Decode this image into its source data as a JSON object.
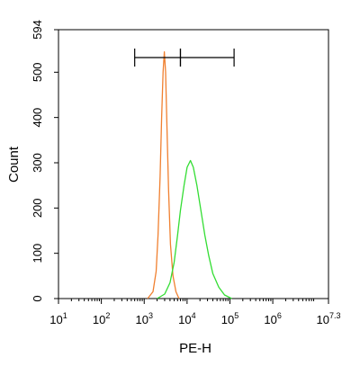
{
  "chart_data": {
    "type": "histogram",
    "xlabel": "PE-H",
    "ylabel": "Count",
    "xscale": "log",
    "xlim": [
      10,
      19952623
    ],
    "ylim": [
      0,
      594
    ],
    "x_ticks": [
      {
        "base": "10",
        "exp": "1",
        "value": 10
      },
      {
        "base": "10",
        "exp": "2",
        "value": 100
      },
      {
        "base": "10",
        "exp": "3",
        "value": 1000
      },
      {
        "base": "10",
        "exp": "4",
        "value": 10000
      },
      {
        "base": "10",
        "exp": "5",
        "value": 100000
      },
      {
        "base": "10",
        "exp": "6",
        "value": 1000000
      },
      {
        "base": "10",
        "exp": "7.3",
        "value": 19952623
      }
    ],
    "y_ticks": [
      {
        "label": "0",
        "value": 0
      },
      {
        "label": "100",
        "value": 100
      },
      {
        "label": "200",
        "value": 200
      },
      {
        "label": "300",
        "value": 300
      },
      {
        "label": "400",
        "value": 400
      },
      {
        "label": "500",
        "value": 500
      },
      {
        "label": "594",
        "value": 594
      }
    ],
    "gates": [
      {
        "x_start": 600,
        "x_end": 7000
      },
      {
        "x_start": 7000,
        "x_end": 125000
      }
    ],
    "series": [
      {
        "color": "#f08030",
        "points": [
          [
            1200,
            0
          ],
          [
            1600,
            15
          ],
          [
            1900,
            60
          ],
          [
            2100,
            140
          ],
          [
            2350,
            270
          ],
          [
            2550,
            400
          ],
          [
            2750,
            500
          ],
          [
            2950,
            545
          ],
          [
            3150,
            500
          ],
          [
            3400,
            380
          ],
          [
            3700,
            240
          ],
          [
            4100,
            120
          ],
          [
            4700,
            50
          ],
          [
            5500,
            15
          ],
          [
            6500,
            0
          ]
        ]
      },
      {
        "color": "#33dd33",
        "points": [
          [
            2000,
            0
          ],
          [
            3000,
            10
          ],
          [
            4000,
            35
          ],
          [
            5000,
            80
          ],
          [
            6000,
            140
          ],
          [
            7000,
            195
          ],
          [
            8500,
            250
          ],
          [
            10000,
            290
          ],
          [
            12000,
            305
          ],
          [
            14000,
            290
          ],
          [
            17000,
            250
          ],
          [
            21000,
            195
          ],
          [
            26000,
            140
          ],
          [
            32000,
            95
          ],
          [
            40000,
            55
          ],
          [
            55000,
            25
          ],
          [
            75000,
            8
          ],
          [
            110000,
            0
          ]
        ]
      }
    ]
  }
}
